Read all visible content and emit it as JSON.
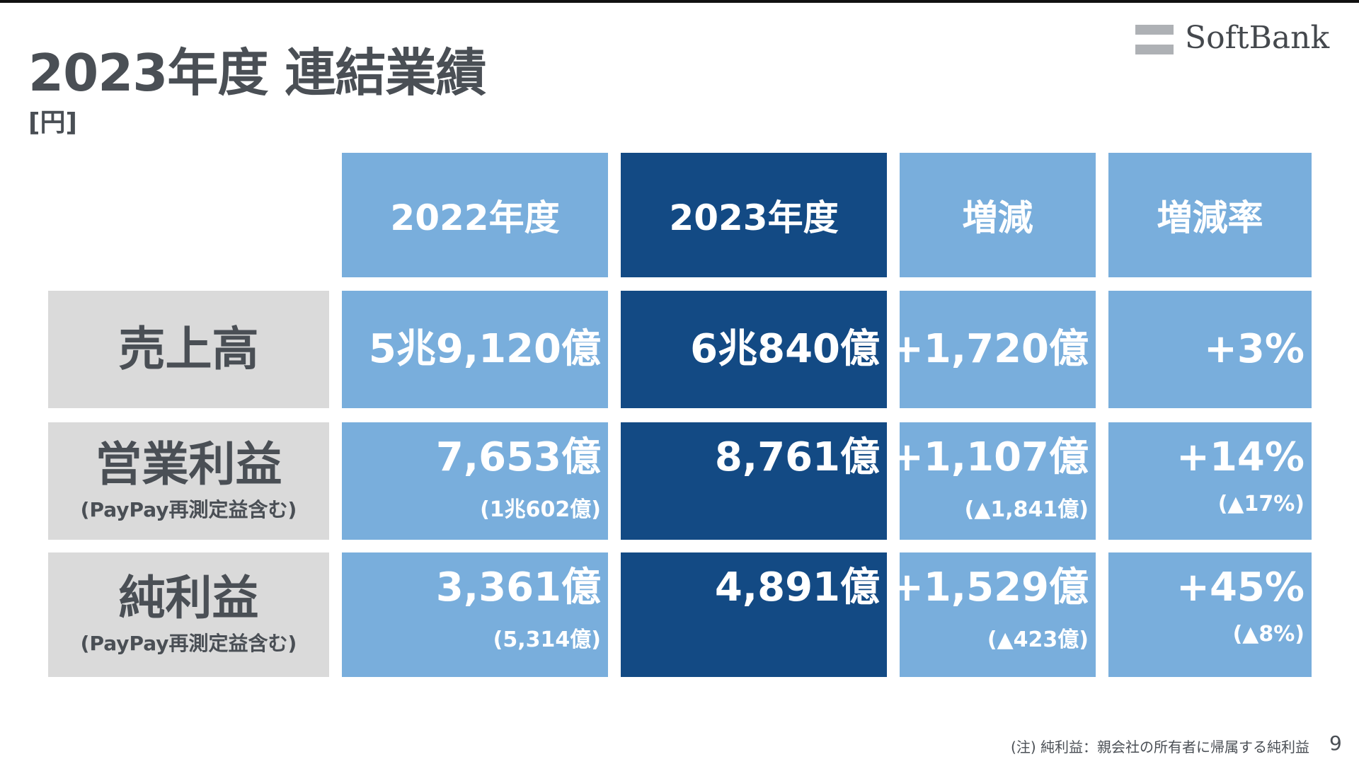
{
  "title": "2023年度 連結業績",
  "unit": "[円]",
  "logo": {
    "text": "SoftBank"
  },
  "table": {
    "headers": [
      "2022年度",
      "2023年度",
      "増減",
      "増減率"
    ],
    "rows": [
      {
        "label": "売上高",
        "sublabel": "",
        "fy2022": "5兆9,120億",
        "fy2022_sub": "",
        "fy2023": "6兆840億",
        "change": "+1,720億",
        "change_sub": "",
        "rate": "+3%",
        "rate_sub": ""
      },
      {
        "label": "営業利益",
        "sublabel": "(PayPay再測定益含む)",
        "fy2022": "7,653億",
        "fy2022_sub": "(1兆602億)",
        "fy2023": "8,761億",
        "change": "+1,107億",
        "change_sub": "(▲1,841億)",
        "rate": "+14%",
        "rate_sub": "(▲17%)"
      },
      {
        "label": "純利益",
        "sublabel": "(PayPay再測定益含む)",
        "fy2022": "3,361億",
        "fy2022_sub": "(5,314億)",
        "fy2023": "4,891億",
        "change": "+1,529億",
        "change_sub": "(▲423億)",
        "rate": "+45%",
        "rate_sub": "(▲8%)"
      }
    ]
  },
  "footnote": "(注) 純利益：親会社の所有者に帰属する純利益",
  "page_number": "9",
  "colors": {
    "light_blue": "#79aedc",
    "dark_blue": "#134a84",
    "gray": "#dadada",
    "text_gray": "#4a4f55"
  }
}
